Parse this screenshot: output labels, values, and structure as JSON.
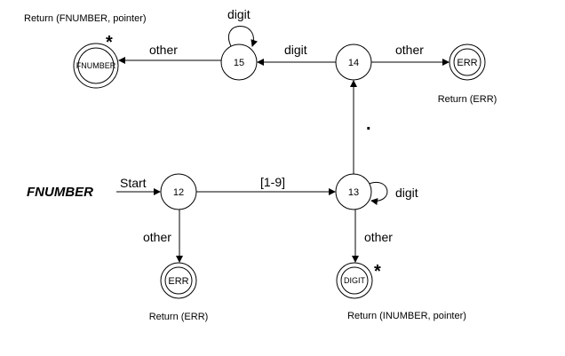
{
  "diagram": {
    "title": "FNUMBER",
    "states": {
      "s12": "12",
      "s13": "13",
      "s14": "14",
      "s15": "15",
      "fnumber_final": "FNUMBER",
      "err_top": "ERR",
      "err_bottom": "ERR",
      "digit_final": "DIGIT"
    },
    "edges": {
      "start": "Start",
      "e12_13": "[1-9]",
      "e13_self": "digit",
      "e13_14": ".",
      "e14_15": "digit",
      "e15_self": "digit",
      "e15_fnumber": "other",
      "e14_err": "other",
      "e12_err": "other",
      "e13_digit": "other"
    },
    "returns": {
      "fnumber": "Return (FNUMBER, pointer)",
      "err_top": "Return (ERR)",
      "err_bottom": "Return (ERR)",
      "inumber": "Return (INUMBER, pointer)"
    },
    "star_marks": {
      "fnumber": "*",
      "digit": "*"
    }
  }
}
